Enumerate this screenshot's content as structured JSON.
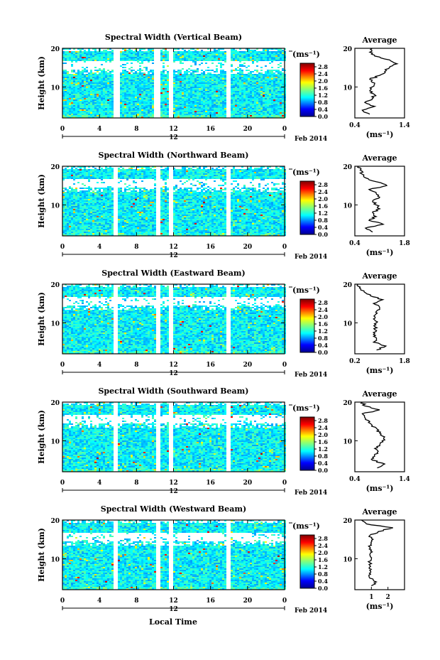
{
  "figure": {
    "xlabel": "Local Time",
    "date_label": "Feb 2014",
    "marker_label": "12",
    "colorbar_unit": "(ms⁻¹)",
    "avg_title": "Average",
    "avg_xlabel": "(ms⁻¹)",
    "height_label": "Height (km)"
  },
  "chart_data": [
    {
      "type": "heatmap",
      "title": "Spectral Width (Vertical Beam)",
      "x_ticks": [
        "0",
        "4",
        "8",
        "12",
        "16",
        "20",
        "0"
      ],
      "xlim": [
        0,
        24
      ],
      "y_ticks": [
        "20",
        "10"
      ],
      "ylim": [
        2,
        20
      ],
      "colorbar_ticks": [
        "2.8",
        "2.4",
        "2.0",
        "1.6",
        "1.2",
        "0.8",
        "0.4",
        "0.0"
      ],
      "colorbar_range": [
        0,
        3.0
      ],
      "gaps_hours": [
        [
          5.5,
          6.0
        ],
        [
          9.8,
          10.5
        ],
        [
          11.5,
          11.8
        ],
        [
          17.6,
          18.0
        ]
      ],
      "profile": {
        "title": "Average",
        "xlim": [
          0.4,
          1.4
        ],
        "x_ticks": [
          "0.4",
          "1.4"
        ],
        "heights": [
          3,
          4,
          5,
          6,
          7,
          8,
          9,
          10,
          11,
          12,
          13,
          14,
          15,
          16,
          17,
          18,
          19,
          20
        ],
        "values": [
          0.7,
          0.55,
          0.8,
          0.6,
          0.75,
          0.8,
          0.7,
          0.75,
          0.8,
          0.7,
          0.9,
          1.0,
          1.1,
          1.25,
          1.1,
          0.8,
          0.7,
          0.75
        ]
      }
    },
    {
      "type": "heatmap",
      "title": "Spectral Width (Northward Beam)",
      "x_ticks": [
        "0",
        "4",
        "8",
        "12",
        "16",
        "20",
        "0"
      ],
      "xlim": [
        0,
        24
      ],
      "y_ticks": [
        "20",
        "10"
      ],
      "ylim": [
        2,
        20
      ],
      "colorbar_ticks": [
        "2.8",
        "2.4",
        "2.0",
        "1.6",
        "1.2",
        "0.8",
        "0.4",
        "0.0"
      ],
      "colorbar_range": [
        0,
        3.0
      ],
      "gaps_hours": [
        [
          5.3,
          5.9
        ],
        [
          9.9,
          10.4
        ],
        [
          11.5,
          11.8
        ],
        [
          17.6,
          18.0
        ]
      ],
      "profile": {
        "title": "Average",
        "xlim": [
          0.4,
          1.8
        ],
        "x_ticks": [
          "0.4",
          "1.8"
        ],
        "heights": [
          3,
          4,
          5,
          6,
          7,
          8,
          9,
          10,
          11,
          12,
          13,
          14,
          15,
          16,
          17,
          18,
          19,
          20
        ],
        "values": [
          0.9,
          0.7,
          1.2,
          0.8,
          1.0,
          0.9,
          1.1,
          1.0,
          0.9,
          1.1,
          1.0,
          0.8,
          1.3,
          1.0,
          0.7,
          0.6,
          0.55,
          0.5
        ]
      }
    },
    {
      "type": "heatmap",
      "title": "Spectral Width (Eastward Beam)",
      "x_ticks": [
        "0",
        "4",
        "8",
        "12",
        "16",
        "20",
        "0"
      ],
      "xlim": [
        0,
        24
      ],
      "y_ticks": [
        "20",
        "10"
      ],
      "ylim": [
        2,
        20
      ],
      "colorbar_ticks": [
        "2.8",
        "2.4",
        "2.0",
        "1.6",
        "1.2",
        "0.8",
        "0.4",
        "0.0"
      ],
      "colorbar_range": [
        0,
        3.0
      ],
      "gaps_hours": [
        [
          5.5,
          5.9
        ],
        [
          9.9,
          10.4
        ],
        [
          11.5,
          11.8
        ],
        [
          17.6,
          18.0
        ]
      ],
      "profile": {
        "title": "Average",
        "xlim": [
          0.2,
          1.8
        ],
        "x_ticks": [
          "0.2",
          "1.8"
        ],
        "heights": [
          3,
          4,
          5,
          6,
          7,
          8,
          9,
          10,
          11,
          12,
          13,
          14,
          15,
          16,
          17,
          18,
          19,
          20
        ],
        "values": [
          0.9,
          1.2,
          0.8,
          0.9,
          0.8,
          0.9,
          0.85,
          0.9,
          0.8,
          0.85,
          0.9,
          1.0,
          0.8,
          1.1,
          0.7,
          0.5,
          0.35,
          0.3
        ]
      }
    },
    {
      "type": "heatmap",
      "title": "Spectral Width (Southward Beam)",
      "x_ticks": [
        "0",
        "4",
        "8",
        "12",
        "16",
        "20",
        "0"
      ],
      "xlim": [
        0,
        24
      ],
      "y_ticks": [
        "20",
        "10"
      ],
      "ylim": [
        2,
        20
      ],
      "colorbar_ticks": [
        "2.8",
        "2.4",
        "2.0",
        "1.6",
        "1.2",
        "0.8",
        "0.4",
        "0.0"
      ],
      "colorbar_range": [
        0,
        3.0
      ],
      "gaps_hours": [
        [
          5.4,
          5.9
        ],
        [
          9.9,
          10.4
        ],
        [
          11.5,
          11.8
        ],
        [
          17.6,
          18.0
        ]
      ],
      "profile": {
        "title": "Average",
        "xlim": [
          0.4,
          1.4
        ],
        "x_ticks": [
          "0.4",
          "1.4"
        ],
        "heights": [
          3,
          4,
          5,
          6,
          7,
          8,
          9,
          10,
          11,
          12,
          13,
          14,
          15,
          16,
          17,
          18,
          19,
          20
        ],
        "values": [
          0.85,
          1.0,
          0.75,
          0.8,
          0.85,
          0.8,
          0.9,
          0.95,
          1.0,
          0.9,
          0.85,
          0.75,
          0.7,
          0.6,
          0.55,
          0.9,
          0.6,
          0.55
        ]
      }
    },
    {
      "type": "heatmap",
      "title": "Spectral Width (Westward Beam)",
      "x_ticks": [
        "0",
        "4",
        "8",
        "12",
        "16",
        "20",
        "0"
      ],
      "xlim": [
        0,
        24
      ],
      "y_ticks": [
        "20",
        "10"
      ],
      "ylim": [
        2,
        20
      ],
      "colorbar_ticks": [
        "2.8",
        "2.4",
        "2.0",
        "1.6",
        "1.2",
        "0.8",
        "0.4",
        "0.0"
      ],
      "colorbar_range": [
        0,
        3.0
      ],
      "gaps_hours": [
        [
          5.5,
          5.9
        ],
        [
          9.9,
          10.4
        ],
        [
          11.5,
          11.8
        ],
        [
          17.6,
          18.0
        ]
      ],
      "profile": {
        "title": "Average",
        "xlim": [
          0,
          3
        ],
        "x_ticks": [
          "1",
          "2"
        ],
        "heights": [
          3,
          4,
          5,
          6,
          7,
          8,
          9,
          10,
          11,
          12,
          13,
          14,
          15,
          16,
          17,
          18,
          19,
          20
        ],
        "values": [
          1.0,
          1.3,
          0.9,
          0.95,
          0.9,
          0.95,
          0.9,
          1.0,
          0.9,
          0.95,
          0.9,
          1.0,
          1.1,
          0.9,
          1.4,
          2.3,
          0.7,
          0.4
        ]
      }
    }
  ]
}
